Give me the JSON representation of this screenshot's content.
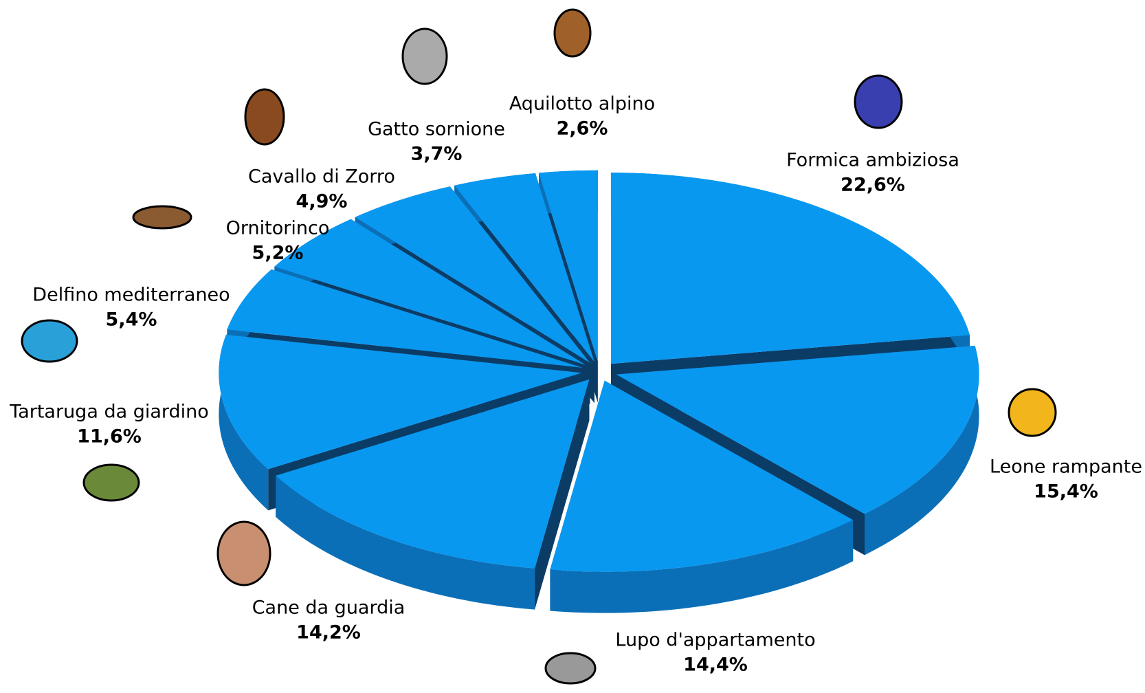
{
  "chart_data": {
    "type": "pie",
    "categories": [
      "Formica ambiziosa",
      "Leone rampante",
      "Lupo d'appartamento",
      "Cane da guardia",
      "Tartaruga da giardino",
      "Delfino mediterraneo",
      "Ornitorinco",
      "Cavallo di Zorro",
      "Gatto sornione",
      "Aquilotto alpino"
    ],
    "values": [
      22.6,
      15.4,
      14.4,
      14.2,
      11.6,
      5.4,
      5.2,
      4.9,
      3.7,
      2.6
    ],
    "value_labels": [
      "22,6%",
      "15,4%",
      "14,4%",
      "14,2%",
      "11,6%",
      "5,4%",
      "5,2%",
      "4,9%",
      "3,7%",
      "2,6%"
    ],
    "color": "#0898f0"
  }
}
